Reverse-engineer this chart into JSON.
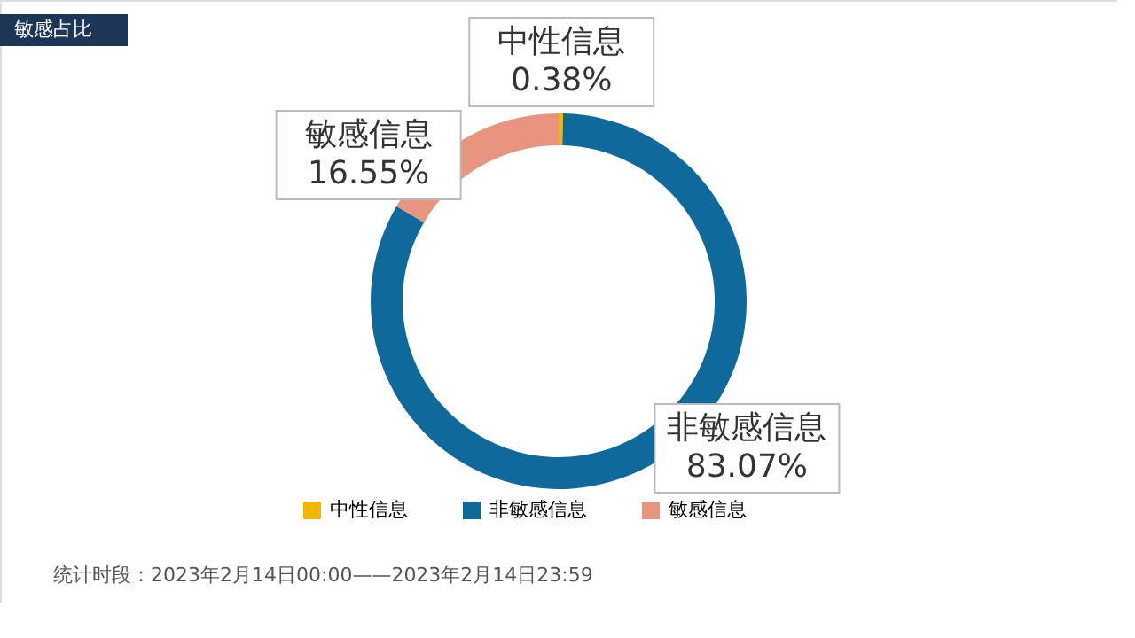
{
  "chart_data": {
    "type": "donut",
    "title": "敏感占比",
    "categories": [
      "中性信息",
      "非敏感信息",
      "敏感信息"
    ],
    "values": [
      0.38,
      83.07,
      16.55
    ],
    "colors": [
      "#f2b705",
      "#0f6a9b",
      "#e8957f"
    ],
    "value_labels": [
      "0.38%",
      "83.07%",
      "16.55%"
    ],
    "legend": "bottom",
    "annotations": [
      "统计时段：2023年2月14日00:00——2023年2月14日23:59"
    ]
  }
}
